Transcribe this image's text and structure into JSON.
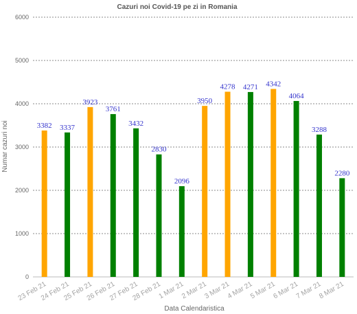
{
  "chart_data": {
    "type": "bar",
    "title": "Cazuri noi Covid-19 pe zi in Romania",
    "xlabel": "Data Calendaristica",
    "ylabel": "Numar cazuri noi",
    "ylim": [
      0,
      6000
    ],
    "yticks": [
      0,
      1000,
      2000,
      3000,
      4000,
      5000,
      6000
    ],
    "grid": true,
    "categories": [
      "23 Feb 21",
      "24 Feb 21",
      "25 Feb 21",
      "26 Feb 21",
      "27 Feb 21",
      "28 Feb 21",
      "1 Mar 21",
      "2 Mar 21",
      "3 Mar 21",
      "4 Mar 21",
      "5 Mar 21",
      "6 Mar 21",
      "7 Mar 21",
      "8 Mar 21"
    ],
    "values": [
      3382,
      3337,
      3923,
      3761,
      3432,
      2830,
      2096,
      3950,
      4278,
      4271,
      4342,
      4064,
      3288,
      2280
    ],
    "colors": {
      "orange": "#ffa500",
      "green": "#008000"
    },
    "bar_colors": [
      "orange",
      "green",
      "orange",
      "green",
      "green",
      "green",
      "green",
      "orange",
      "orange",
      "green",
      "orange",
      "green",
      "green",
      "green"
    ],
    "data_label_color": "#3333cc"
  }
}
